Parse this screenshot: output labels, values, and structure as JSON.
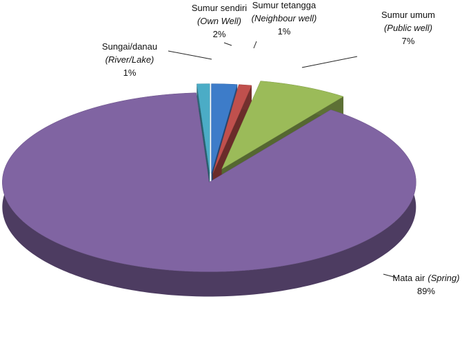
{
  "chart_data": {
    "type": "pie",
    "categories": [
      "Sumur sendiri",
      "Sumur tetangga",
      "Sumur umum",
      "Mata air",
      "Sungai/danau"
    ],
    "translations": [
      "(Own Well)",
      "(Neighbour well)",
      "(Public well)",
      "(Spring)",
      "(River/Lake)"
    ],
    "values": [
      2,
      1,
      7,
      89,
      1
    ],
    "value_labels": [
      "2%",
      "1%",
      "7%",
      "89%",
      "1%"
    ],
    "colors": [
      "#3d7cc9",
      "#c0504d",
      "#9bbb59",
      "#8064a2",
      "#4bacc6"
    ]
  }
}
